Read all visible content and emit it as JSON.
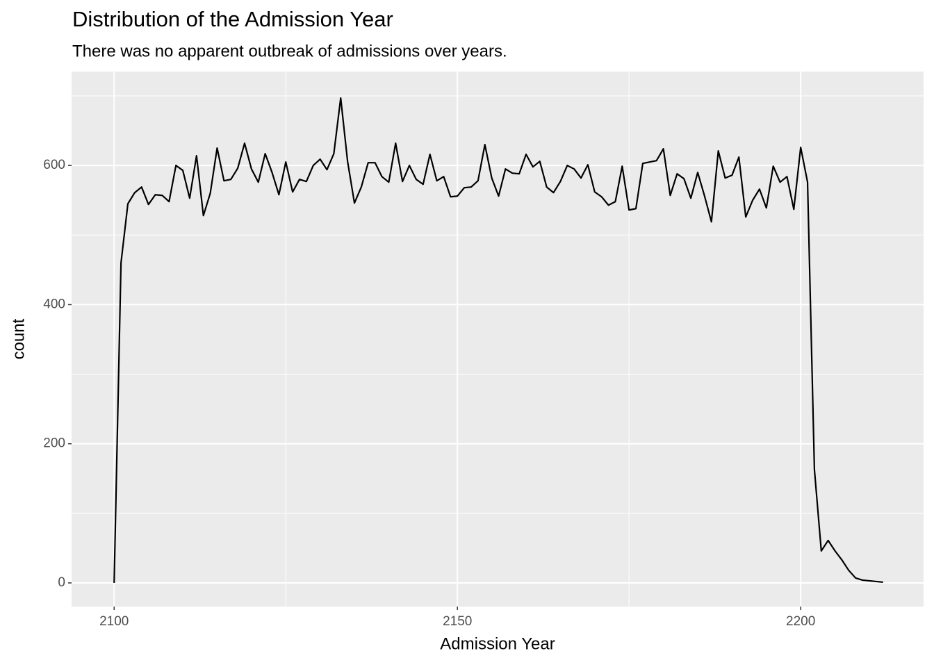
{
  "chart_data": {
    "type": "line",
    "title": "Distribution of the Admission Year",
    "subtitle": "There was no apparent outbreak of admissions over years.",
    "x_label": "Admission Year",
    "y_label": "count",
    "x": [
      2100,
      2101,
      2102,
      2103,
      2104,
      2105,
      2106,
      2107,
      2108,
      2109,
      2110,
      2111,
      2112,
      2113,
      2114,
      2115,
      2116,
      2117,
      2118,
      2119,
      2120,
      2121,
      2122,
      2123,
      2124,
      2125,
      2126,
      2127,
      2128,
      2129,
      2130,
      2131,
      2132,
      2133,
      2134,
      2135,
      2136,
      2137,
      2138,
      2139,
      2140,
      2141,
      2142,
      2143,
      2144,
      2145,
      2146,
      2147,
      2148,
      2149,
      2150,
      2151,
      2152,
      2153,
      2154,
      2155,
      2156,
      2157,
      2158,
      2159,
      2160,
      2161,
      2162,
      2163,
      2164,
      2165,
      2166,
      2167,
      2168,
      2169,
      2170,
      2171,
      2172,
      2173,
      2174,
      2175,
      2176,
      2177,
      2178,
      2179,
      2180,
      2181,
      2182,
      2183,
      2184,
      2185,
      2186,
      2187,
      2188,
      2189,
      2190,
      2191,
      2192,
      2193,
      2194,
      2195,
      2196,
      2197,
      2198,
      2199,
      2200,
      2201,
      2202,
      2203,
      2204,
      2205,
      2206,
      2207,
      2208,
      2209,
      2210,
      2212
    ],
    "series": [
      {
        "name": "count",
        "color": "#000000",
        "values": [
          0,
          460,
          545,
          561,
          569,
          544,
          558,
          557,
          548,
          600,
          593,
          553,
          614,
          528,
          560,
          625,
          578,
          580,
          596,
          632,
          595,
          576,
          617,
          590,
          558,
          605,
          562,
          580,
          577,
          600,
          609,
          594,
          617,
          697,
          606,
          546,
          569,
          604,
          604,
          584,
          576,
          632,
          577,
          600,
          580,
          573,
          616,
          578,
          584,
          555,
          556,
          568,
          569,
          578,
          630,
          582,
          556,
          595,
          589,
          588,
          616,
          598,
          606,
          569,
          561,
          577,
          600,
          595,
          582,
          601,
          562,
          555,
          543,
          548,
          599,
          536,
          538,
          603,
          605,
          607,
          624,
          557,
          588,
          581,
          553,
          590,
          556,
          519,
          621,
          582,
          586,
          612,
          526,
          550,
          566,
          539,
          599,
          576,
          584,
          537,
          626,
          576,
          163,
          46,
          61,
          46,
          33,
          18,
          7,
          4,
          3,
          1
        ]
      }
    ],
    "xlim": [
      2093.8,
      2217.9
    ],
    "ylim": [
      -34,
      735
    ],
    "xticks": [
      2100,
      2150,
      2200
    ],
    "yticks": [
      0,
      200,
      400,
      600
    ],
    "xminor": [
      2125,
      2175
    ],
    "yminor": [
      100,
      300,
      500,
      700
    ],
    "grid": true,
    "panel_color": "#ebebeb"
  }
}
